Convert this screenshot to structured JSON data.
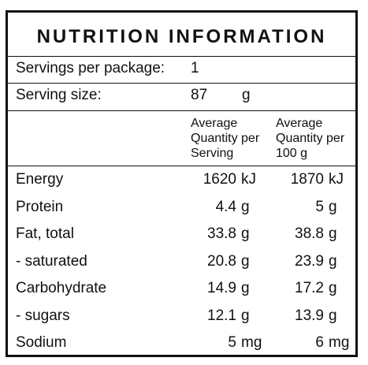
{
  "title": "NUTRITION INFORMATION",
  "servings": {
    "label": "Servings per package:",
    "value": "1"
  },
  "serving_size": {
    "label": "Serving size:",
    "value": "87",
    "unit": "g"
  },
  "headers": {
    "per_serving": "Average Quantity per Serving",
    "per_100g": "Average Quantity per 100 g"
  },
  "rows": [
    {
      "name": "Energy",
      "serving_value": "1620",
      "serving_unit": "kJ",
      "per100_value": "1870",
      "per100_unit": "kJ"
    },
    {
      "name": "Protein",
      "serving_value": "4.4",
      "serving_unit": "g",
      "per100_value": "5",
      "per100_unit": "g"
    },
    {
      "name": "Fat, total",
      "serving_value": "33.8",
      "serving_unit": "g",
      "per100_value": "38.8",
      "per100_unit": "g"
    },
    {
      "name": "- saturated",
      "serving_value": "20.8",
      "serving_unit": "g",
      "per100_value": "23.9",
      "per100_unit": "g"
    },
    {
      "name": "Carbohydrate",
      "serving_value": "14.9",
      "serving_unit": "g",
      "per100_value": "17.2",
      "per100_unit": "g"
    },
    {
      "name": "- sugars",
      "serving_value": "12.1",
      "serving_unit": "g",
      "per100_value": "13.9",
      "per100_unit": "g"
    },
    {
      "name": "Sodium",
      "serving_value": "5",
      "serving_unit": "mg",
      "per100_value": "6",
      "per100_unit": "mg"
    }
  ]
}
